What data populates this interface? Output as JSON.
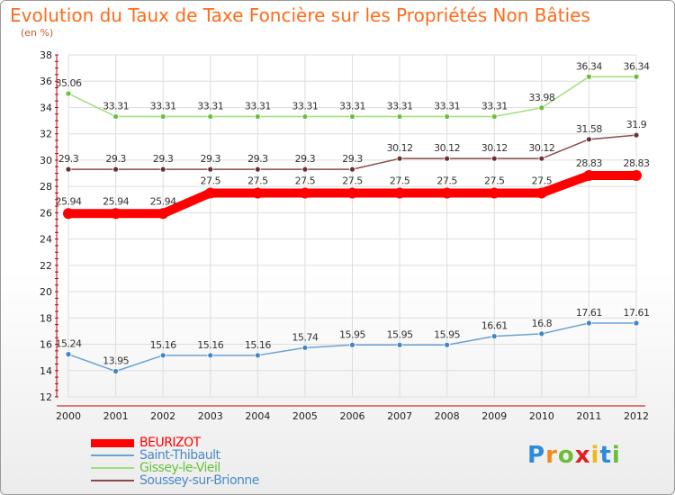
{
  "title": "Evolution du Taux de Taxe Foncière sur les Propriétés Non Bâties",
  "unit_label": "(en %)",
  "logo_text": "Proxiti",
  "colors": {
    "title": "#ff6a1a",
    "axis_text": "#222222",
    "grid": "#dddddd",
    "axis": "#c00000"
  },
  "chart_data": {
    "type": "line",
    "title": "Evolution du Taux de Taxe Foncière sur les Propriétés Non Bâties",
    "ylabel": "(en %)",
    "ylim": [
      12,
      38
    ],
    "yticks": [
      12,
      14,
      16,
      18,
      20,
      22,
      24,
      26,
      28,
      30,
      32,
      34,
      36,
      38
    ],
    "grid": true,
    "legend_position": "bottom-left",
    "x": [
      "2000",
      "2001",
      "2002",
      "2003",
      "2004",
      "2005",
      "2006",
      "2007",
      "2008",
      "2009",
      "2010",
      "2011",
      "2012"
    ],
    "series": [
      {
        "name": "BEURIZOT",
        "color": "#ff0000",
        "marker": "#ff0000",
        "values": [
          25.94,
          25.94,
          25.94,
          27.5,
          27.5,
          27.5,
          27.5,
          27.5,
          27.5,
          27.5,
          27.5,
          28.83,
          28.83
        ],
        "labels": [
          "25.94",
          "25.94",
          "25.94",
          "27.5",
          "27.5",
          "27.5",
          "27.5",
          "27.5",
          "27.5",
          "27.5",
          "27.5",
          "28.83",
          "28.83"
        ]
      },
      {
        "name": "Saint-Thibault",
        "color": "#6aa2d2",
        "marker": "#3f86c8",
        "values": [
          15.24,
          13.95,
          15.16,
          15.16,
          15.16,
          15.74,
          15.95,
          15.95,
          15.95,
          16.61,
          16.8,
          17.61,
          17.61
        ],
        "labels": [
          "15.24",
          "13.95",
          "15.16",
          "15.16",
          "15.16",
          "15.74",
          "15.95",
          "15.95",
          "15.95",
          "16.61",
          "16.8",
          "17.61",
          "17.61"
        ]
      },
      {
        "name": "Gissey-le-Vieil",
        "color": "#9ee07a",
        "marker": "#66c23a",
        "values": [
          35.06,
          33.31,
          33.31,
          33.31,
          33.31,
          33.31,
          33.31,
          33.31,
          33.31,
          33.31,
          33.98,
          36.34,
          36.34
        ],
        "labels": [
          "35.06",
          "33.31",
          "33.31",
          "33.31",
          "33.31",
          "33.31",
          "33.31",
          "33.31",
          "33.31",
          "33.31",
          "33.98",
          "36.34",
          "36.34"
        ]
      },
      {
        "name": "Soussey-sur-Brionne",
        "color": "#8b4a4a",
        "marker": "#6b3030",
        "values": [
          29.3,
          29.3,
          29.3,
          29.3,
          29.3,
          29.3,
          29.3,
          30.12,
          30.12,
          30.12,
          30.12,
          31.58,
          31.9
        ],
        "labels": [
          "29.3",
          "29.3",
          "29.3",
          "29.3",
          "29.3",
          "29.3",
          "29.3",
          "30.12",
          "30.12",
          "30.12",
          "30.12",
          "31.58",
          "31.9"
        ]
      }
    ]
  }
}
